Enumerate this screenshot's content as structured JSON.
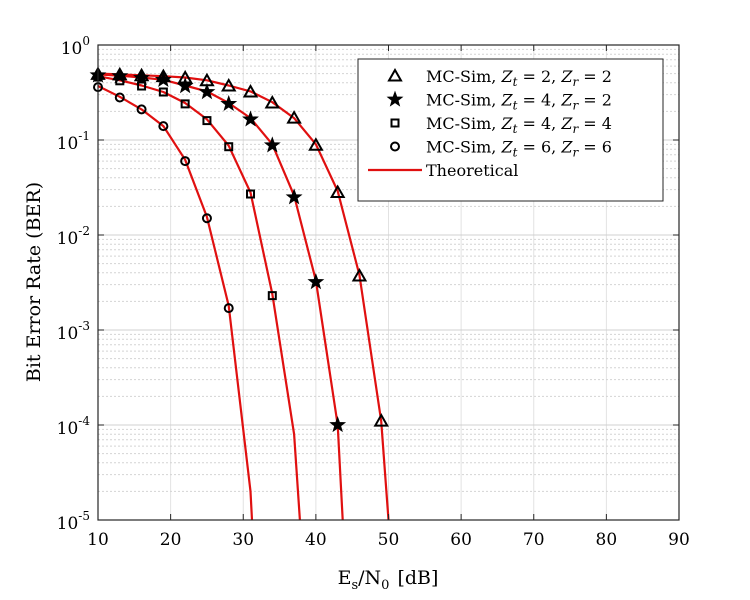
{
  "chart_data": {
    "type": "line",
    "x_scale": "linear",
    "y_scale": "log",
    "xlabel_main": "E",
    "xlabel_sub1": "s",
    "xlabel_mid": "/N",
    "xlabel_sub2": "0",
    "xlabel_unit": "[dB]",
    "ylabel": "Bit Error Rate (BER)",
    "xlim": [
      10,
      90
    ],
    "ylim": [
      1e-05,
      1
    ],
    "x_ticks": [
      10,
      20,
      30,
      40,
      50,
      60,
      70,
      80,
      90
    ],
    "x_tick_labels": [
      "10",
      "20",
      "30",
      "40",
      "50",
      "60",
      "70",
      "80",
      "90"
    ],
    "y_ticks": [
      1,
      0.1,
      0.01,
      0.001,
      0.0001,
      1e-05
    ],
    "y_tick_base": "10",
    "y_tick_exponents": [
      "0",
      "-1",
      "-2",
      "-3",
      "-4",
      "-5"
    ],
    "grid": true,
    "legend_position": "top-right",
    "legend_sim_prefix": "MC-Sim,",
    "series": [
      {
        "name_zt": "2",
        "name_zr": "2",
        "marker": "triangle",
        "x": [
          10,
          13,
          16,
          19,
          22,
          25,
          28,
          31,
          34,
          37,
          40,
          43,
          46,
          49
        ],
        "y": [
          0.49,
          0.485,
          0.475,
          0.465,
          0.45,
          0.42,
          0.37,
          0.32,
          0.245,
          0.17,
          0.088,
          0.028,
          0.0037,
          0.00011
        ]
      },
      {
        "name_zt": "4",
        "name_zr": "2",
        "marker": "star",
        "x": [
          10,
          13,
          16,
          19,
          22,
          25,
          28,
          31,
          34,
          37,
          40,
          43
        ],
        "y": [
          0.48,
          0.47,
          0.45,
          0.43,
          0.37,
          0.32,
          0.24,
          0.165,
          0.088,
          0.025,
          0.0032,
          0.0001
        ]
      },
      {
        "name_zt": "4",
        "name_zr": "4",
        "marker": "square",
        "x": [
          10,
          13,
          16,
          19,
          22,
          25,
          28,
          31,
          34
        ],
        "y": [
          0.46,
          0.42,
          0.37,
          0.32,
          0.24,
          0.16,
          0.085,
          0.027,
          0.0023
        ]
      },
      {
        "name_zt": "6",
        "name_zr": "6",
        "marker": "circle",
        "x": [
          10,
          13,
          16,
          19,
          22,
          25,
          28
        ],
        "y": [
          0.36,
          0.28,
          0.21,
          0.14,
          0.06,
          0.015,
          0.0017
        ]
      }
    ],
    "theoretical": {
      "name": "Theoretical",
      "color": "#e01010",
      "curves": [
        {
          "x": [
            10,
            13,
            16,
            19,
            22,
            25,
            28,
            31,
            34,
            37,
            40,
            43,
            46,
            49,
            50
          ],
          "y": [
            0.5,
            0.49,
            0.48,
            0.47,
            0.455,
            0.425,
            0.375,
            0.325,
            0.25,
            0.17,
            0.09,
            0.029,
            0.0038,
            0.00011,
            1e-05
          ]
        },
        {
          "x": [
            10,
            13,
            16,
            19,
            22,
            25,
            28,
            31,
            34,
            37,
            40,
            43,
            43.7
          ],
          "y": [
            0.49,
            0.475,
            0.455,
            0.43,
            0.375,
            0.325,
            0.245,
            0.17,
            0.09,
            0.026,
            0.0033,
            0.0001,
            1e-05
          ]
        },
        {
          "x": [
            10,
            13,
            16,
            19,
            22,
            25,
            28,
            31,
            34,
            37,
            37.8
          ],
          "y": [
            0.47,
            0.425,
            0.375,
            0.32,
            0.245,
            0.165,
            0.087,
            0.028,
            0.0024,
            8e-05,
            1e-05
          ]
        },
        {
          "x": [
            10,
            13,
            16,
            19,
            22,
            25,
            28,
            31,
            31.2
          ],
          "y": [
            0.37,
            0.285,
            0.21,
            0.14,
            0.062,
            0.0155,
            0.0018,
            2e-05,
            1e-05
          ]
        }
      ]
    }
  }
}
